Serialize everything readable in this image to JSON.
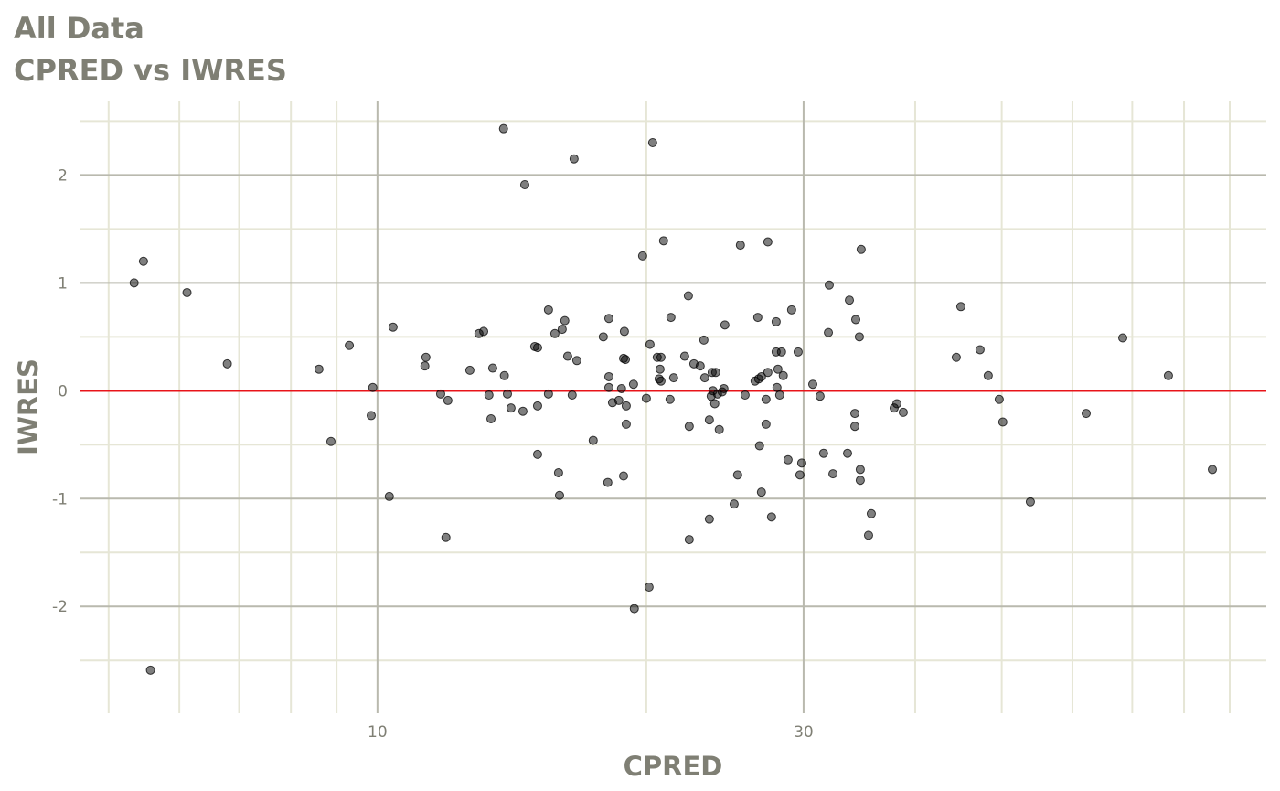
{
  "chart_data": {
    "type": "scatter",
    "title": "All Data",
    "subtitle": "CPRED vs IWRES",
    "xlabel": "CPRED",
    "ylabel": "IWRES",
    "x_scale": "log10",
    "xlim": [
      4.65,
      98.9
    ],
    "ylim": [
      -2.99,
      2.69
    ],
    "x_ticks": [
      10,
      30
    ],
    "x_tick_labels": [
      "10",
      "30"
    ],
    "x_minor_grid": [
      5,
      6,
      7,
      8,
      9,
      20,
      40,
      50,
      60,
      70,
      80,
      90
    ],
    "y_ticks": [
      -2,
      -1,
      0,
      1,
      2
    ],
    "y_tick_labels": [
      "-2",
      "-1",
      "0",
      "1",
      "2"
    ],
    "y_minor_grid": [
      -2.5,
      -1.5,
      -0.5,
      0.5,
      1.5,
      2.5
    ],
    "grid": true,
    "reference_line": {
      "y": 0,
      "color": "#e8141a"
    },
    "colors": {
      "point": "#000000",
      "point_opacity": 0.5,
      "major_grid": "#b9b9ae",
      "minor_grid": "#e6e6d6",
      "text": "#7f7f74"
    },
    "points": [
      [
        5.34,
        1.0
      ],
      [
        5.47,
        1.2
      ],
      [
        6.12,
        0.91
      ],
      [
        6.79,
        0.25
      ],
      [
        5.57,
        -2.59
      ],
      [
        8.6,
        0.2
      ],
      [
        8.87,
        -0.47
      ],
      [
        9.3,
        0.42
      ],
      [
        9.84,
        -0.23
      ],
      [
        9.88,
        0.03
      ],
      [
        10.31,
        -0.98
      ],
      [
        10.41,
        0.59
      ],
      [
        11.3,
        0.23
      ],
      [
        11.33,
        0.31
      ],
      [
        11.77,
        -0.03
      ],
      [
        11.93,
        -1.36
      ],
      [
        11.99,
        -0.09
      ],
      [
        12.69,
        0.19
      ],
      [
        12.99,
        0.53
      ],
      [
        13.15,
        0.55
      ],
      [
        13.33,
        -0.04
      ],
      [
        13.4,
        -0.26
      ],
      [
        13.46,
        0.21
      ],
      [
        13.84,
        2.43
      ],
      [
        13.87,
        0.14
      ],
      [
        13.98,
        -0.03
      ],
      [
        14.11,
        -0.16
      ],
      [
        14.55,
        -0.19
      ],
      [
        14.62,
        1.91
      ],
      [
        15.0,
        0.41
      ],
      [
        15.11,
        0.4
      ],
      [
        15.11,
        -0.14
      ],
      [
        15.11,
        -0.59
      ],
      [
        15.54,
        0.75
      ],
      [
        15.54,
        -0.03
      ],
      [
        15.8,
        0.53
      ],
      [
        15.95,
        -0.76
      ],
      [
        15.99,
        -0.97
      ],
      [
        16.1,
        0.57
      ],
      [
        16.21,
        0.65
      ],
      [
        16.33,
        0.32
      ],
      [
        16.52,
        -0.04
      ],
      [
        16.6,
        2.15
      ],
      [
        16.72,
        0.28
      ],
      [
        17.44,
        -0.46
      ],
      [
        17.9,
        0.5
      ],
      [
        18.11,
        -0.85
      ],
      [
        18.16,
        0.67
      ],
      [
        18.16,
        0.13
      ],
      [
        18.16,
        0.03
      ],
      [
        18.33,
        -0.11
      ],
      [
        18.63,
        -0.09
      ],
      [
        18.76,
        0.02
      ],
      [
        18.86,
        -0.79
      ],
      [
        18.86,
        0.3
      ],
      [
        18.9,
        0.55
      ],
      [
        18.95,
        0.29
      ],
      [
        18.99,
        -0.14
      ],
      [
        18.99,
        -0.31
      ],
      [
        19.35,
        0.06
      ],
      [
        19.39,
        -2.02
      ],
      [
        19.81,
        1.25
      ],
      [
        20.0,
        -0.07
      ],
      [
        20.14,
        -1.82
      ],
      [
        20.19,
        0.43
      ],
      [
        20.33,
        2.3
      ],
      [
        20.57,
        0.31
      ],
      [
        20.67,
        0.11
      ],
      [
        20.72,
        0.2
      ],
      [
        20.77,
        0.09
      ],
      [
        20.77,
        0.31
      ],
      [
        20.91,
        1.39
      ],
      [
        21.26,
        -0.08
      ],
      [
        21.31,
        0.68
      ],
      [
        21.46,
        0.12
      ],
      [
        22.08,
        0.32
      ],
      [
        22.29,
        0.88
      ],
      [
        22.34,
        -0.33
      ],
      [
        22.34,
        -1.38
      ],
      [
        22.61,
        0.25
      ],
      [
        22.98,
        0.23
      ],
      [
        23.2,
        0.47
      ],
      [
        23.25,
        0.12
      ],
      [
        23.53,
        -1.19
      ],
      [
        23.53,
        -0.27
      ],
      [
        23.64,
        -0.05
      ],
      [
        23.7,
        0.17
      ],
      [
        23.75,
        0.0
      ],
      [
        23.86,
        -0.12
      ],
      [
        23.92,
        0.17
      ],
      [
        24.03,
        -0.03
      ],
      [
        24.14,
        -0.36
      ],
      [
        24.32,
        -0.01
      ],
      [
        24.43,
        0.02
      ],
      [
        24.49,
        0.61
      ],
      [
        25.08,
        -1.05
      ],
      [
        25.31,
        -0.78
      ],
      [
        25.49,
        1.35
      ],
      [
        25.8,
        -0.04
      ],
      [
        26.47,
        0.09
      ],
      [
        26.66,
        0.68
      ],
      [
        26.72,
        0.11
      ],
      [
        26.78,
        -0.51
      ],
      [
        26.91,
        0.13
      ],
      [
        26.91,
        -0.94
      ],
      [
        27.23,
        -0.08
      ],
      [
        27.23,
        -0.31
      ],
      [
        27.36,
        1.38
      ],
      [
        27.36,
        0.17
      ],
      [
        27.62,
        -1.17
      ],
      [
        27.95,
        0.64
      ],
      [
        27.95,
        0.36
      ],
      [
        28.01,
        0.03
      ],
      [
        28.08,
        0.2
      ],
      [
        28.21,
        -0.04
      ],
      [
        28.34,
        0.36
      ],
      [
        28.47,
        0.14
      ],
      [
        28.82,
        -0.64
      ],
      [
        29.09,
        0.75
      ],
      [
        29.58,
        0.36
      ],
      [
        29.72,
        -0.78
      ],
      [
        29.86,
        -0.67
      ],
      [
        30.72,
        0.06
      ],
      [
        31.3,
        -0.05
      ],
      [
        31.59,
        -0.58
      ],
      [
        32.05,
        0.98
      ],
      [
        31.98,
        0.54
      ],
      [
        32.36,
        -0.77
      ],
      [
        33.6,
        -0.58
      ],
      [
        33.76,
        0.84
      ],
      [
        34.24,
        -0.21
      ],
      [
        34.24,
        -0.33
      ],
      [
        34.32,
        0.66
      ],
      [
        34.64,
        0.5
      ],
      [
        34.72,
        -0.83
      ],
      [
        34.72,
        -0.73
      ],
      [
        34.8,
        1.31
      ],
      [
        35.47,
        -1.34
      ],
      [
        35.72,
        -1.14
      ],
      [
        37.89,
        -0.16
      ],
      [
        38.16,
        -0.12
      ],
      [
        38.79,
        -0.2
      ],
      [
        44.47,
        0.31
      ],
      [
        45.0,
        0.78
      ],
      [
        47.28,
        0.38
      ],
      [
        48.29,
        0.14
      ],
      [
        49.68,
        -0.08
      ],
      [
        50.14,
        -0.29
      ],
      [
        53.83,
        -1.03
      ],
      [
        62.16,
        -0.21
      ],
      [
        68.31,
        0.49
      ],
      [
        76.84,
        0.14
      ],
      [
        86.06,
        -0.73
      ]
    ]
  }
}
